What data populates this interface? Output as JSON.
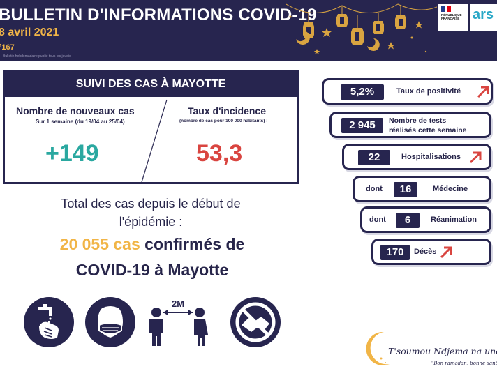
{
  "header": {
    "title": "BULLETIN D'INFORMATIONS COVID-19",
    "date": "8 avril 2021",
    "number": "°167",
    "small_text": "Bulletin hebdomadaire publié tous les jeudis"
  },
  "logos": {
    "republique_line1": "RÉPUBLIQUE",
    "republique_line2": "FRANÇAISE",
    "ars": "ars"
  },
  "suivi": {
    "title": "SUIVI DES CAS À MAYOTTE",
    "new_cases_label": "Nombre de nouveaux cas",
    "new_cases_sub": "Sur 1 semaine (du 19/04 au 25/04)",
    "new_cases_value": "+149",
    "incidence_label": "Taux d'incidence",
    "incidence_sub": "(nombre de cas pour 100 000 habitants) :",
    "incidence_value": "53,3"
  },
  "total": {
    "line1": "Total des cas depuis le début de",
    "line2": "l'épidémie :",
    "count": "20 055 cas",
    "line3_rest": " confirmés de",
    "line4": "COVID-19 à Mayotte"
  },
  "icons": [
    "handwashing-icon",
    "mask-icon",
    "distance-2m-icon",
    "no-handshake-icon"
  ],
  "icon_distance_text": "2M",
  "stats": {
    "positivity_value": "5,2%",
    "positivity_label": "Taux de positivité",
    "tests_value": "2 945",
    "tests_label_1": "Nombre de tests",
    "tests_label_2": "réalisés cette semaine",
    "hosp_value": "22",
    "hosp_label": "Hospitalisations",
    "med_prefix": "dont",
    "med_value": "16",
    "med_label": "Médecine",
    "rea_prefix": "dont",
    "rea_value": "6",
    "rea_label": "Réanimation",
    "deaths_value": "170",
    "deaths_label": "Décès"
  },
  "footer": {
    "slogan": "T'soumou Ndjema na unono",
    "tagline": "\"Bon ramadan, bonne santé\""
  },
  "colors": {
    "navy": "#27254f",
    "gold": "#f1b547",
    "teal": "#2aa8a0",
    "red": "#d94540"
  }
}
